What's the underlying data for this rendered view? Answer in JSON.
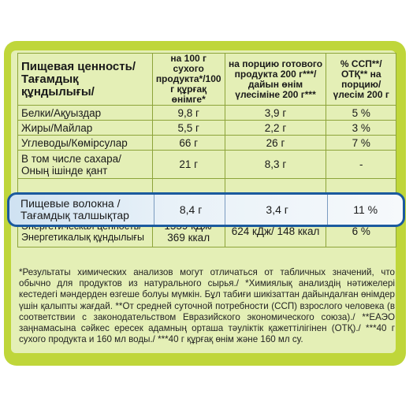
{
  "header": {
    "col1": "Пищевая ценность/ Тағамдық құндылығы/",
    "col2": "на 100 г сухого продукта*/100 г құрғақ өнімге*",
    "col3": "на порцию готового продукта 200 г***/дайын өнім үлесіміне 200 г***",
    "col4": "% ССП**/ОТҚ** на порцию/ үлесім 200 г"
  },
  "rows": [
    {
      "name": "Белки/Ақуыздар",
      "v1": "9,8 г",
      "v2": "3,9 г",
      "v3": "5 %"
    },
    {
      "name": "Жиры/Майлар",
      "v1": "5,5 г",
      "v2": "2,2 г",
      "v3": "3 %"
    },
    {
      "name": "Углеводы/Көмірсулар",
      "v1": "66 г",
      "v2": "26 г",
      "v3": "7 %"
    },
    {
      "name": "В том числе сахара/ Оның ішінде қант",
      "v1": "21 г",
      "v2": "8,3 г",
      "v3": "-"
    }
  ],
  "highlight": {
    "name": "Пищевые волокна / Тағамдық талшықтар",
    "v1": "8,4 г",
    "v2": "3,4 г",
    "v3": "11 %"
  },
  "energy": {
    "name": "Энергетическая ценность/ Энергетикалық құндылығы",
    "v1": "1559 кДж/ 369 ккал",
    "v2": "624 кДж/ 148 ккал",
    "v3": "6 %"
  },
  "footnote": "*Результаты химических анализов могут отличаться от табличных значений, что обычно для продуктов из натурального сырья./ *Химиялық анализдің нәтижелері кестедегі мәндерден өзгеше болуы мүмкін. Бұл табиғи шикізаттан дайындалған өнімдер үшін қалыпты жағдай. **От средней суточной потребности (ССП) взрослого человека (в соответствии с законодательством Евразийского экономического союза)./ **ЕАЭО заңнамасына сәйкес ересек адамның орташа тәуліктік қажеттілігінен (ОТҚ)./ ***40 г сухого продукта и 160 мл воды./ ***40 г құрғақ өнім және 160 мл су."
}
